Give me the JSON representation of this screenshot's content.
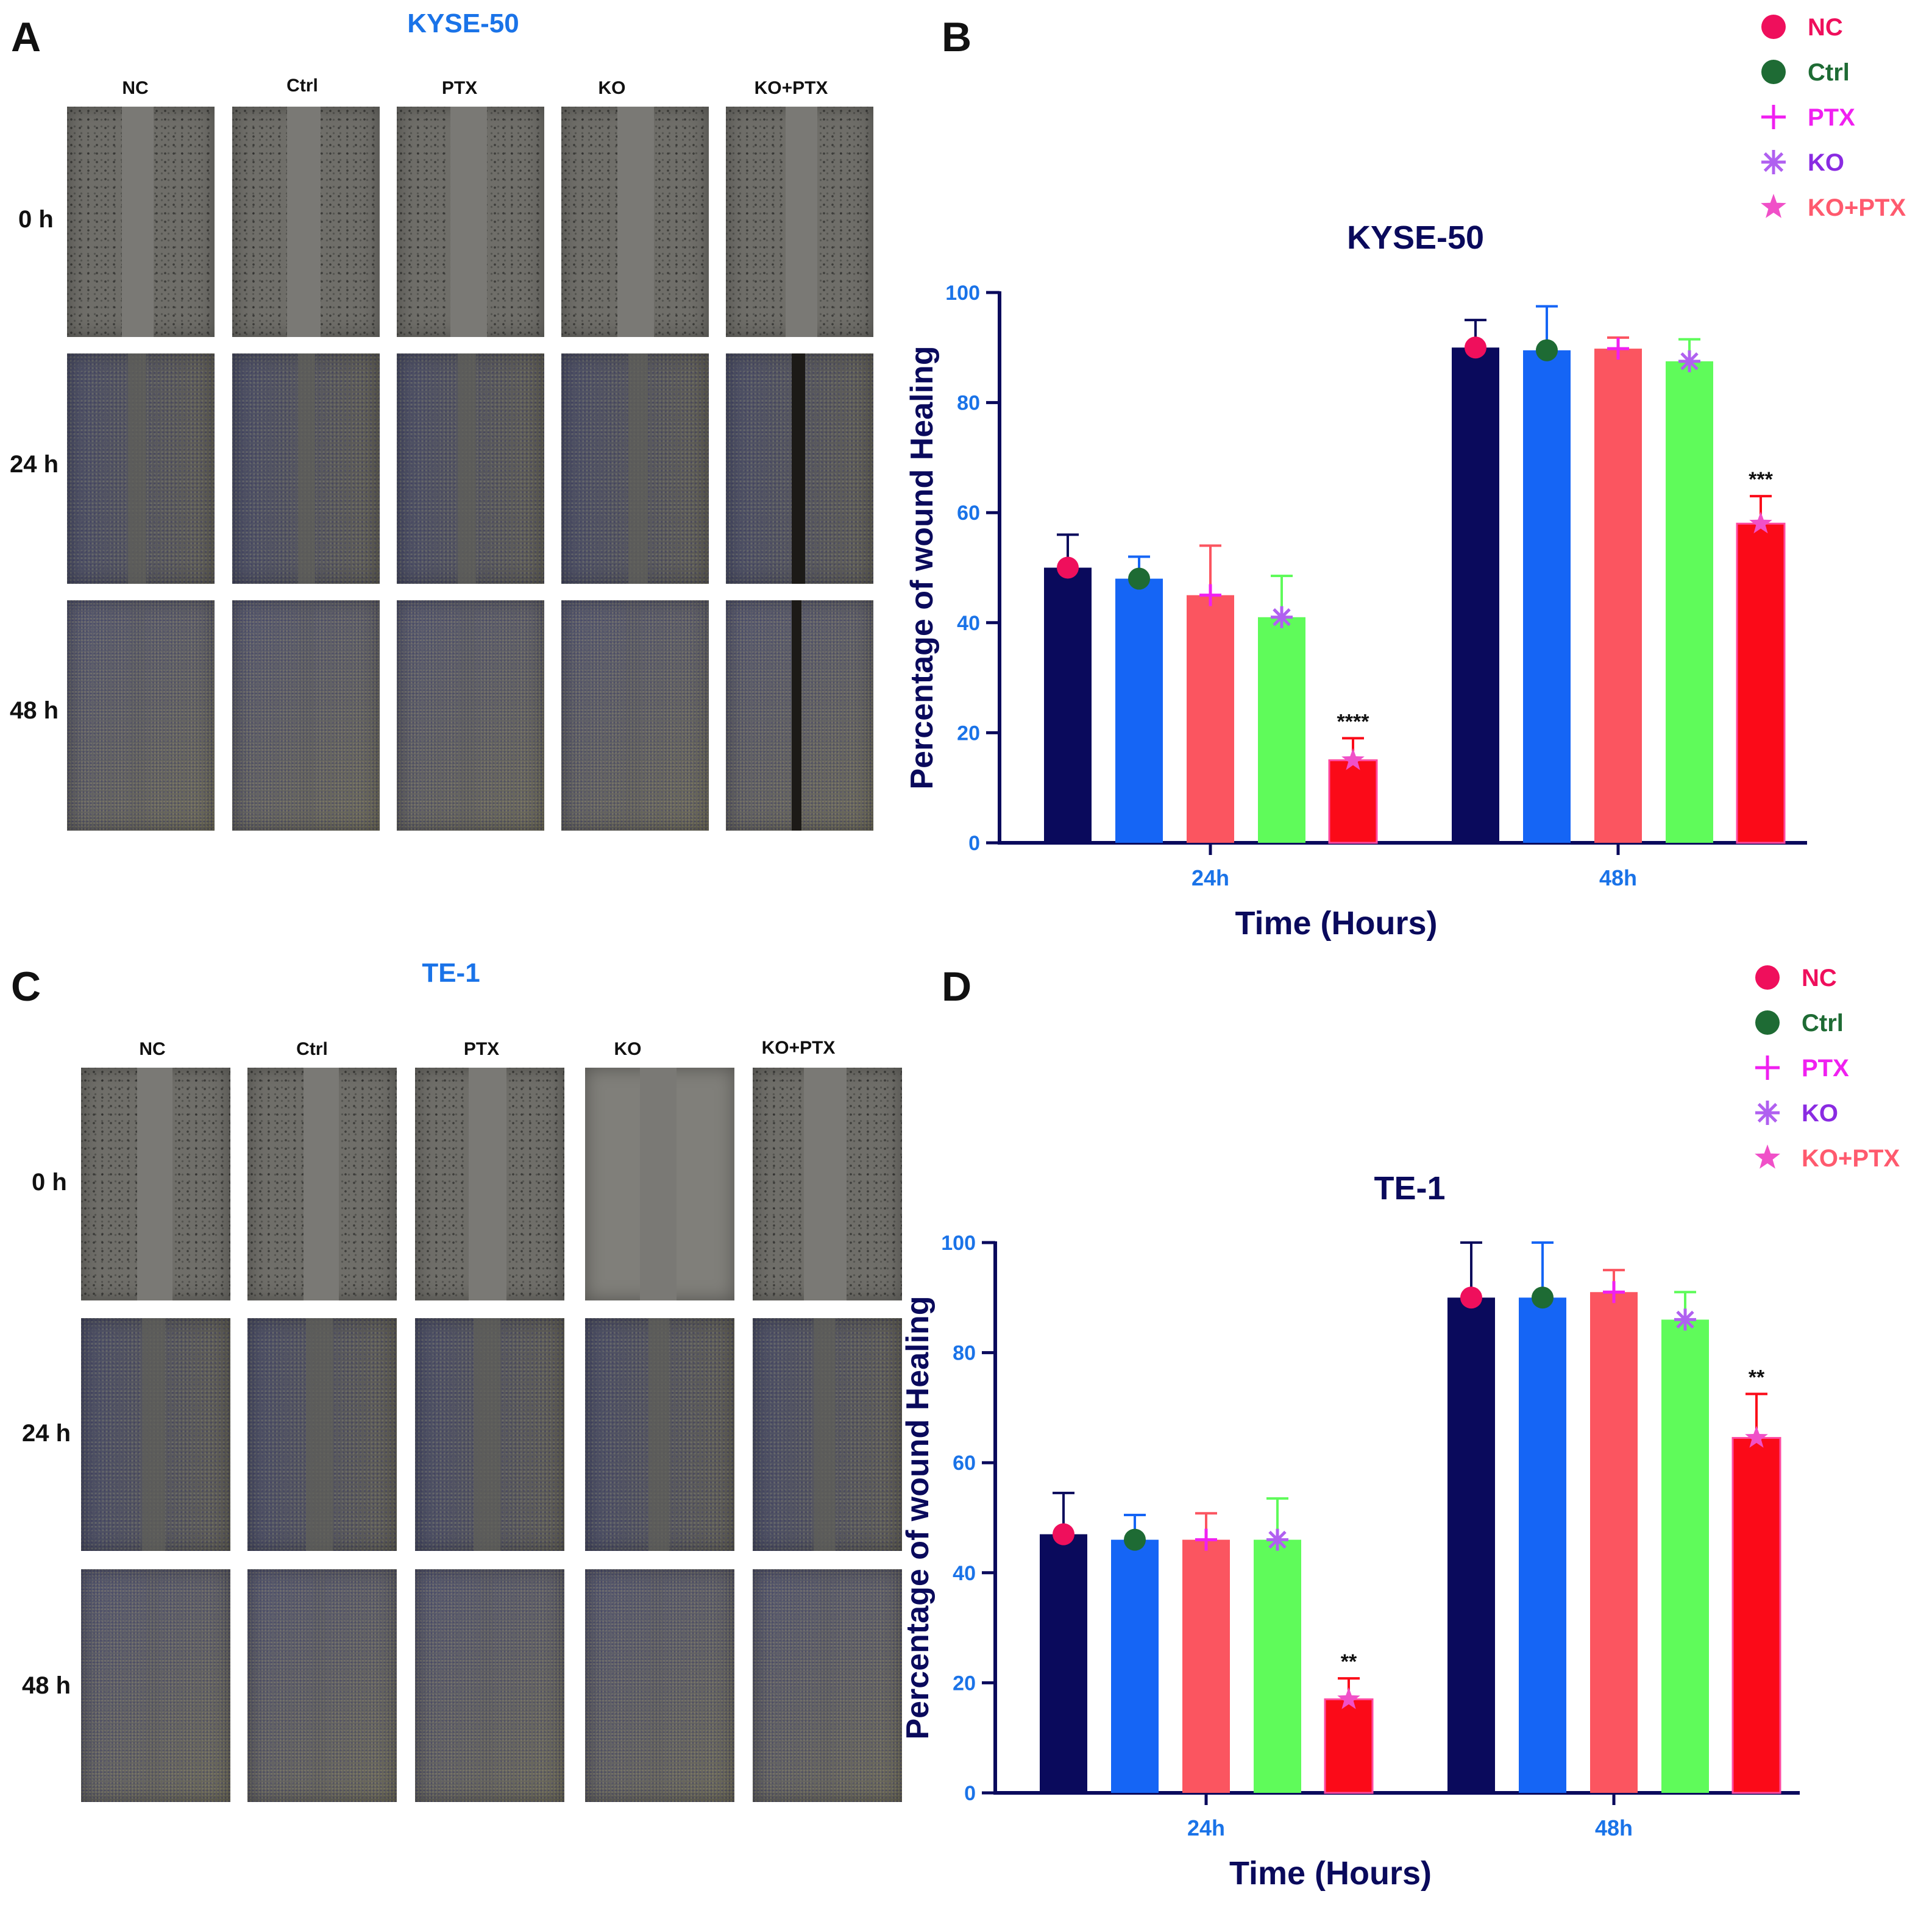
{
  "panels": {
    "A": {
      "letter": "A",
      "title": "KYSE-50"
    },
    "B": {
      "letter": "B"
    },
    "C": {
      "letter": "C",
      "title": "TE-1"
    },
    "D": {
      "letter": "D"
    }
  },
  "micrographs": {
    "kyse50": {
      "columns": [
        "NC",
        "Ctrl",
        "PTX",
        "KO",
        "KO+PTX"
      ],
      "rows": [
        "0 h",
        "24 h",
        "48 h"
      ]
    },
    "te1": {
      "columns": [
        "NC",
        "Ctrl",
        "PTX",
        "KO",
        "KO+PTX"
      ],
      "rows": [
        "0 h",
        "24 h",
        "48 h"
      ]
    }
  },
  "colors": {
    "NC": "#0a0a5c",
    "Ctrl": "#1565f5",
    "PTX": "#fb5560",
    "KO": "#5ffb5a",
    "KO+PTX": "#fb0a18",
    "axis": "#0a0a5c",
    "tick": "#1a73e8"
  },
  "legend_colors": {
    "NC": "#ef0f5c",
    "Ctrl": "#1e6b34",
    "PTX": "#f020f0",
    "KO": "#8a2be2",
    "KO+PTX": "#ff5a6e",
    "marker_KO+PTX": "#f050c8",
    "marker_KO": "#b060f0"
  },
  "chart_data": [
    {
      "type": "bar",
      "title": "KYSE-50",
      "xlabel": "Time (Hours)",
      "ylabel": "Percentage of wound Healing",
      "categories": [
        "24h",
        "48h"
      ],
      "ylim": [
        0,
        100
      ],
      "yticks": [
        "0",
        "20",
        "40",
        "60",
        "80",
        "100"
      ],
      "legend_position": "top-right",
      "legend": [
        "NC",
        "Ctrl",
        "PTX",
        "KO",
        "KO+PTX"
      ],
      "series": [
        {
          "name": "NC",
          "values": [
            50,
            90
          ],
          "errors": [
            6,
            5
          ]
        },
        {
          "name": "Ctrl",
          "values": [
            48,
            89.5
          ],
          "errors": [
            4,
            8
          ]
        },
        {
          "name": "PTX",
          "values": [
            45,
            89.8
          ],
          "errors": [
            9,
            2
          ]
        },
        {
          "name": "KO",
          "values": [
            41,
            87.5
          ],
          "errors": [
            7.5,
            4
          ]
        },
        {
          "name": "KO+PTX",
          "values": [
            15,
            58
          ],
          "errors": [
            4,
            5
          ]
        }
      ],
      "annotations": [
        {
          "category": "24h",
          "series": "KO+PTX",
          "text": "****"
        },
        {
          "category": "48h",
          "series": "KO+PTX",
          "text": "***"
        }
      ]
    },
    {
      "type": "bar",
      "title": "TE-1",
      "xlabel": "Time (Hours)",
      "ylabel": "Percentage of wound Healing",
      "categories": [
        "24h",
        "48h"
      ],
      "ylim": [
        0,
        100
      ],
      "yticks": [
        "0",
        "20",
        "40",
        "60",
        "80",
        "100"
      ],
      "legend_position": "top-right",
      "legend": [
        "NC",
        "Ctrl",
        "PTX",
        "KO",
        "KO+PTX"
      ],
      "series": [
        {
          "name": "NC",
          "values": [
            47,
            90
          ],
          "errors": [
            7.5,
            10
          ]
        },
        {
          "name": "Ctrl",
          "values": [
            46,
            90
          ],
          "errors": [
            4.5,
            10
          ]
        },
        {
          "name": "PTX",
          "values": [
            46,
            91
          ],
          "errors": [
            4.8,
            4
          ]
        },
        {
          "name": "KO",
          "values": [
            46,
            86
          ],
          "errors": [
            7.5,
            5
          ]
        },
        {
          "name": "KO+PTX",
          "values": [
            17,
            64.5
          ],
          "errors": [
            3.8,
            8
          ]
        }
      ],
      "annotations": [
        {
          "category": "24h",
          "series": "KO+PTX",
          "text": "**"
        },
        {
          "category": "48h",
          "series": "KO+PTX",
          "text": "**"
        }
      ]
    }
  ]
}
